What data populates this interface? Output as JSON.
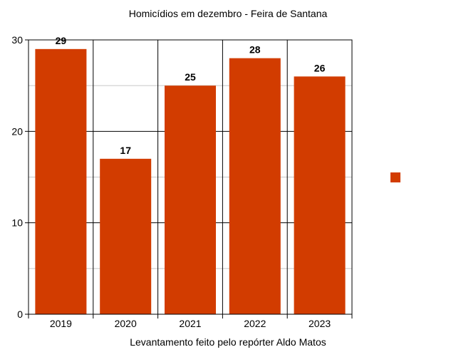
{
  "chart_data": {
    "type": "bar",
    "title": "Homicídios em  dezembro - Feira de Santana",
    "xlabel": "Levantamento feito pelo repórter Aldo Matos",
    "ylabel": "",
    "categories": [
      "2019",
      "2020",
      "2021",
      "2022",
      "2023"
    ],
    "values": [
      29,
      17,
      25,
      28,
      26
    ],
    "ylim": [
      0,
      30
    ],
    "yticks": [
      "0",
      "10",
      "20",
      "30"
    ],
    "bar_color": "#d23c00",
    "grid": true,
    "legend": {
      "placement": "right",
      "entries": [
        ""
      ]
    }
  }
}
